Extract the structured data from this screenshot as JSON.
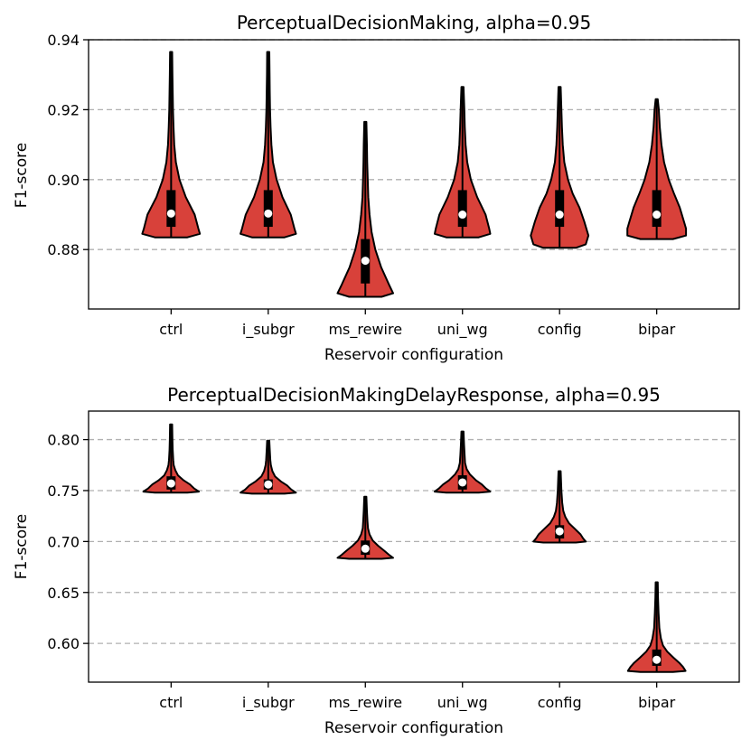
{
  "colors": {
    "violin_fill": "#d8413a",
    "violin_edge": "#000000",
    "box": "#000000",
    "median_dot": "#ffffff",
    "grid": "#b0b0b0"
  },
  "chart_data": [
    {
      "type": "violin",
      "title": "PerceptualDecisionMaking, alpha=0.95",
      "xlabel": "Reservoir configuration",
      "ylabel": "F1-score",
      "ylim": [
        0.863,
        0.94
      ],
      "yticks": [
        0.88,
        0.9,
        0.92,
        0.94
      ],
      "ytick_labels": [
        "0.88",
        "0.90",
        "0.92",
        "0.94"
      ],
      "grid": "y dashed",
      "categories": [
        "ctrl",
        "i_subgr",
        "ms_rewire",
        "uni_wg",
        "config",
        "bipar"
      ],
      "series": [
        {
          "label": "ctrl",
          "min": 0.8835,
          "max": 0.9365,
          "q1": 0.8865,
          "q3": 0.897,
          "median": 0.8903,
          "profile": [
            [
              0.8835,
              0.31
            ],
            [
              0.8845,
              0.55
            ],
            [
              0.886,
              0.52
            ],
            [
              0.89,
              0.45
            ],
            [
              0.895,
              0.28
            ],
            [
              0.9,
              0.16
            ],
            [
              0.905,
              0.09
            ],
            [
              0.91,
              0.06
            ],
            [
              0.915,
              0.045
            ],
            [
              0.92,
              0.035
            ],
            [
              0.925,
              0.03
            ],
            [
              0.93,
              0.025
            ],
            [
              0.9365,
              0.02
            ]
          ]
        },
        {
          "label": "i_subgr",
          "min": 0.8835,
          "max": 0.9365,
          "q1": 0.8865,
          "q3": 0.897,
          "median": 0.8903,
          "profile": [
            [
              0.8835,
              0.31
            ],
            [
              0.8845,
              0.53
            ],
            [
              0.886,
              0.5
            ],
            [
              0.89,
              0.43
            ],
            [
              0.895,
              0.27
            ],
            [
              0.9,
              0.16
            ],
            [
              0.905,
              0.09
            ],
            [
              0.91,
              0.06
            ],
            [
              0.915,
              0.045
            ],
            [
              0.92,
              0.035
            ],
            [
              0.925,
              0.03
            ],
            [
              0.93,
              0.025
            ],
            [
              0.9365,
              0.02
            ]
          ]
        },
        {
          "label": "ms_rewire",
          "min": 0.8665,
          "max": 0.9165,
          "q1": 0.8703,
          "q3": 0.883,
          "median": 0.8768,
          "profile": [
            [
              0.8665,
              0.31
            ],
            [
              0.8675,
              0.53
            ],
            [
              0.87,
              0.45
            ],
            [
              0.875,
              0.3
            ],
            [
              0.88,
              0.19
            ],
            [
              0.885,
              0.12
            ],
            [
              0.89,
              0.08
            ],
            [
              0.895,
              0.055
            ],
            [
              0.9,
              0.045
            ],
            [
              0.905,
              0.035
            ],
            [
              0.91,
              0.03
            ],
            [
              0.9165,
              0.02
            ]
          ]
        },
        {
          "label": "uni_wg",
          "min": 0.8835,
          "max": 0.9265,
          "q1": 0.8865,
          "q3": 0.897,
          "median": 0.89,
          "profile": [
            [
              0.8835,
              0.31
            ],
            [
              0.8845,
              0.53
            ],
            [
              0.886,
              0.51
            ],
            [
              0.89,
              0.44
            ],
            [
              0.895,
              0.28
            ],
            [
              0.9,
              0.16
            ],
            [
              0.905,
              0.09
            ],
            [
              0.91,
              0.06
            ],
            [
              0.915,
              0.045
            ],
            [
              0.92,
              0.035
            ],
            [
              0.9265,
              0.02
            ]
          ]
        },
        {
          "label": "config",
          "min": 0.8805,
          "max": 0.9265,
          "q1": 0.8865,
          "q3": 0.897,
          "median": 0.89,
          "profile": [
            [
              0.8805,
              0.31
            ],
            [
              0.8815,
              0.5
            ],
            [
              0.884,
              0.55
            ],
            [
              0.888,
              0.47
            ],
            [
              0.892,
              0.38
            ],
            [
              0.896,
              0.25
            ],
            [
              0.9,
              0.16
            ],
            [
              0.905,
              0.09
            ],
            [
              0.91,
              0.06
            ],
            [
              0.915,
              0.045
            ],
            [
              0.92,
              0.035
            ],
            [
              0.9265,
              0.02
            ]
          ]
        },
        {
          "label": "bipar",
          "min": 0.883,
          "max": 0.923,
          "q1": 0.8865,
          "q3": 0.897,
          "median": 0.89,
          "profile": [
            [
              0.883,
              0.31
            ],
            [
              0.884,
              0.56
            ],
            [
              0.886,
              0.56
            ],
            [
              0.888,
              0.52
            ],
            [
              0.892,
              0.44
            ],
            [
              0.896,
              0.33
            ],
            [
              0.9,
              0.23
            ],
            [
              0.905,
              0.14
            ],
            [
              0.91,
              0.09
            ],
            [
              0.915,
              0.06
            ],
            [
              0.92,
              0.04
            ],
            [
              0.923,
              0.02
            ]
          ]
        }
      ]
    },
    {
      "type": "violin",
      "title": "PerceptualDecisionMakingDelayResponse, alpha=0.95",
      "xlabel": "Reservoir configuration",
      "ylabel": "F1-score",
      "ylim": [
        0.562,
        0.828
      ],
      "yticks": [
        0.6,
        0.65,
        0.7,
        0.75,
        0.8
      ],
      "ytick_labels": [
        "0.60",
        "0.65",
        "0.70",
        "0.75",
        "0.80"
      ],
      "grid": "y dashed",
      "categories": [
        "ctrl",
        "i_subgr",
        "ms_rewire",
        "uni_wg",
        "config",
        "bipar"
      ],
      "series": [
        {
          "label": "ctrl",
          "min": 0.748,
          "max": 0.815,
          "q1": 0.751,
          "q3": 0.764,
          "median": 0.757,
          "profile": [
            [
              0.748,
              0.31
            ],
            [
              0.749,
              0.53
            ],
            [
              0.752,
              0.44
            ],
            [
              0.756,
              0.36
            ],
            [
              0.76,
              0.24
            ],
            [
              0.765,
              0.13
            ],
            [
              0.77,
              0.08
            ],
            [
              0.775,
              0.05
            ],
            [
              0.78,
              0.04
            ],
            [
              0.79,
              0.03
            ],
            [
              0.8,
              0.025
            ],
            [
              0.815,
              0.02
            ]
          ]
        },
        {
          "label": "i_subgr",
          "min": 0.747,
          "max": 0.799,
          "q1": 0.751,
          "q3": 0.761,
          "median": 0.756,
          "profile": [
            [
              0.747,
              0.31
            ],
            [
              0.748,
              0.53
            ],
            [
              0.751,
              0.44
            ],
            [
              0.755,
              0.36
            ],
            [
              0.759,
              0.24
            ],
            [
              0.764,
              0.13
            ],
            [
              0.769,
              0.08
            ],
            [
              0.775,
              0.05
            ],
            [
              0.78,
              0.04
            ],
            [
              0.79,
              0.03
            ],
            [
              0.799,
              0.02
            ]
          ]
        },
        {
          "label": "ms_rewire",
          "min": 0.683,
          "max": 0.744,
          "q1": 0.687,
          "q3": 0.701,
          "median": 0.693,
          "profile": [
            [
              0.683,
              0.31
            ],
            [
              0.684,
              0.53
            ],
            [
              0.687,
              0.45
            ],
            [
              0.691,
              0.36
            ],
            [
              0.696,
              0.24
            ],
            [
              0.701,
              0.14
            ],
            [
              0.707,
              0.08
            ],
            [
              0.713,
              0.05
            ],
            [
              0.72,
              0.04
            ],
            [
              0.73,
              0.03
            ],
            [
              0.744,
              0.02
            ]
          ]
        },
        {
          "label": "uni_wg",
          "min": 0.748,
          "max": 0.808,
          "q1": 0.751,
          "q3": 0.765,
          "median": 0.758,
          "profile": [
            [
              0.748,
              0.31
            ],
            [
              0.749,
              0.53
            ],
            [
              0.752,
              0.45
            ],
            [
              0.756,
              0.37
            ],
            [
              0.76,
              0.26
            ],
            [
              0.766,
              0.14
            ],
            [
              0.771,
              0.08
            ],
            [
              0.777,
              0.05
            ],
            [
              0.785,
              0.04
            ],
            [
              0.795,
              0.03
            ],
            [
              0.808,
              0.02
            ]
          ]
        },
        {
          "label": "config",
          "min": 0.699,
          "max": 0.769,
          "q1": 0.703,
          "q3": 0.716,
          "median": 0.71,
          "profile": [
            [
              0.699,
              0.31
            ],
            [
              0.7,
              0.5
            ],
            [
              0.703,
              0.45
            ],
            [
              0.707,
              0.4
            ],
            [
              0.712,
              0.3
            ],
            [
              0.718,
              0.18
            ],
            [
              0.724,
              0.11
            ],
            [
              0.73,
              0.07
            ],
            [
              0.738,
              0.05
            ],
            [
              0.75,
              0.035
            ],
            [
              0.769,
              0.02
            ]
          ]
        },
        {
          "label": "bipar",
          "min": 0.572,
          "max": 0.66,
          "q1": 0.578,
          "q3": 0.594,
          "median": 0.584,
          "profile": [
            [
              0.572,
              0.31
            ],
            [
              0.573,
              0.55
            ],
            [
              0.577,
              0.5
            ],
            [
              0.581,
              0.43
            ],
            [
              0.586,
              0.32
            ],
            [
              0.592,
              0.2
            ],
            [
              0.598,
              0.12
            ],
            [
              0.605,
              0.08
            ],
            [
              0.615,
              0.05
            ],
            [
              0.63,
              0.035
            ],
            [
              0.645,
              0.025
            ],
            [
              0.66,
              0.02
            ]
          ]
        }
      ]
    }
  ]
}
